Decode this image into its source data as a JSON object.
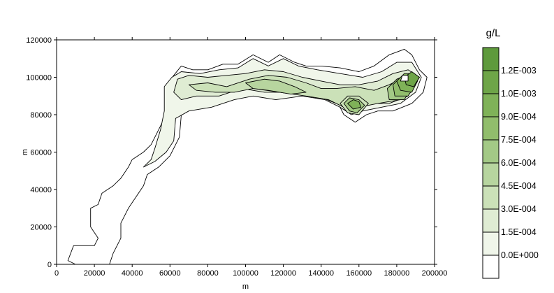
{
  "chart_data": {
    "type": "contour",
    "xlabel": "m",
    "ylabel": "m",
    "xlim": [
      0,
      200000
    ],
    "ylim": [
      0,
      120000
    ],
    "x_ticks": [
      "0",
      "20000",
      "40000",
      "60000",
      "80000",
      "100000",
      "120000",
      "140000",
      "160000",
      "180000",
      "200000"
    ],
    "x_tick_values": [
      0,
      20000,
      40000,
      60000,
      80000,
      100000,
      120000,
      140000,
      160000,
      180000,
      200000
    ],
    "y_ticks": [
      "0",
      "20000",
      "40000",
      "60000",
      "80000",
      "100000",
      "120000"
    ],
    "y_tick_values": [
      0,
      20000,
      40000,
      60000,
      80000,
      100000,
      120000
    ],
    "legend": {
      "title": "g/L",
      "placement": "right",
      "labels": [
        "1.2E-003",
        "1.0E-003",
        "9.0E-004",
        "7.5E-004",
        "6.0E-004",
        "4.5E-004",
        "3.0E-004",
        "1.5E-004",
        "0.0E+000"
      ],
      "colors": [
        "#5e9a3c",
        "#6ea548",
        "#7fb258",
        "#91bd6c",
        "#a3c986",
        "#b7d59f",
        "#cbe1b8",
        "#dfecd3",
        "#f0f6ea",
        "#ffffff"
      ]
    },
    "regions": [
      {
        "level": 0,
        "points": [
          [
            6000,
            2000
          ],
          [
            9000,
            10000
          ],
          [
            20000,
            10000
          ],
          [
            22000,
            14000
          ],
          [
            18000,
            20000
          ],
          [
            18000,
            30000
          ],
          [
            22000,
            32000
          ],
          [
            24000,
            38000
          ],
          [
            30000,
            42000
          ],
          [
            34000,
            46000
          ],
          [
            38000,
            52000
          ],
          [
            40000,
            56000
          ],
          [
            46000,
            60000
          ],
          [
            50000,
            64000
          ],
          [
            53000,
            70000
          ],
          [
            56000,
            76000
          ],
          [
            58000,
            82000
          ],
          [
            58000,
            95000
          ],
          [
            62000,
            101000
          ],
          [
            66000,
            106000
          ],
          [
            72000,
            104000
          ],
          [
            80000,
            104000
          ],
          [
            88000,
            107000
          ],
          [
            96000,
            107000
          ],
          [
            104000,
            112000
          ],
          [
            112000,
            108000
          ],
          [
            118000,
            112000
          ],
          [
            126000,
            108000
          ],
          [
            132000,
            106000
          ],
          [
            140000,
            106000
          ],
          [
            150000,
            105000
          ],
          [
            160000,
            103000
          ],
          [
            168000,
            106000
          ],
          [
            176000,
            112000
          ],
          [
            184000,
            115000
          ],
          [
            188000,
            112000
          ],
          [
            192000,
            104000
          ],
          [
            196000,
            100000
          ],
          [
            194000,
            92000
          ],
          [
            188000,
            86000
          ],
          [
            178000,
            82000
          ],
          [
            170000,
            82000
          ],
          [
            164000,
            80000
          ],
          [
            158000,
            76000
          ],
          [
            152000,
            80000
          ],
          [
            148000,
            88000
          ],
          [
            140000,
            90000
          ],
          [
            130000,
            92000
          ],
          [
            118000,
            90000
          ],
          [
            106000,
            92000
          ],
          [
            98000,
            92000
          ],
          [
            90000,
            88000
          ],
          [
            80000,
            86000
          ],
          [
            70000,
            84000
          ],
          [
            66000,
            80000
          ],
          [
            65000,
            68000
          ],
          [
            60000,
            58000
          ],
          [
            54000,
            52000
          ],
          [
            48000,
            48000
          ],
          [
            46000,
            42000
          ],
          [
            42000,
            36000
          ],
          [
            38000,
            30000
          ],
          [
            34000,
            22000
          ],
          [
            34000,
            14000
          ],
          [
            30000,
            6000
          ],
          [
            28000,
            0
          ],
          [
            10000,
            0
          ]
        ]
      },
      {
        "level": 1,
        "points": [
          [
            46000,
            52000
          ],
          [
            50000,
            56000
          ],
          [
            52000,
            62000
          ],
          [
            55000,
            72000
          ],
          [
            57000,
            82000
          ],
          [
            57000,
            95000
          ],
          [
            61000,
            100000
          ],
          [
            66000,
            103000
          ],
          [
            76000,
            102000
          ],
          [
            86000,
            104000
          ],
          [
            96000,
            105000
          ],
          [
            104000,
            110000
          ],
          [
            112000,
            106000
          ],
          [
            120000,
            110000
          ],
          [
            128000,
            106000
          ],
          [
            138000,
            104000
          ],
          [
            150000,
            102000
          ],
          [
            162000,
            100000
          ],
          [
            172000,
            103000
          ],
          [
            180000,
            108000
          ],
          [
            188000,
            108000
          ],
          [
            193000,
            100000
          ],
          [
            190000,
            92000
          ],
          [
            182000,
            86000
          ],
          [
            172000,
            84000
          ],
          [
            162000,
            82000
          ],
          [
            156000,
            80000
          ],
          [
            150000,
            84000
          ],
          [
            142000,
            88000
          ],
          [
            130000,
            90000
          ],
          [
            116000,
            88000
          ],
          [
            104000,
            90000
          ],
          [
            94000,
            88000
          ],
          [
            82000,
            84000
          ],
          [
            70000,
            82000
          ],
          [
            63000,
            78000
          ],
          [
            62000,
            66000
          ],
          [
            58000,
            60000
          ],
          [
            52000,
            55000
          ]
        ]
      },
      {
        "level": 2,
        "points": [
          [
            62000,
            92000
          ],
          [
            64000,
            99000
          ],
          [
            70000,
            101000
          ],
          [
            80000,
            100000
          ],
          [
            90000,
            101000
          ],
          [
            100000,
            102000
          ],
          [
            110000,
            104000
          ],
          [
            120000,
            103000
          ],
          [
            130000,
            100000
          ],
          [
            140000,
            98000
          ],
          [
            150000,
            96000
          ],
          [
            160000,
            96000
          ],
          [
            170000,
            98000
          ],
          [
            178000,
            102000
          ],
          [
            186000,
            104000
          ],
          [
            192000,
            100000
          ],
          [
            186000,
            90000
          ],
          [
            176000,
            86000
          ],
          [
            166000,
            86000
          ],
          [
            156000,
            82000
          ],
          [
            148000,
            86000
          ],
          [
            138000,
            90000
          ],
          [
            124000,
            92000
          ],
          [
            110000,
            92000
          ],
          [
            98000,
            94000
          ],
          [
            86000,
            90000
          ],
          [
            74000,
            90000
          ],
          [
            66000,
            88000
          ]
        ]
      },
      {
        "level": 3,
        "points": [
          [
            70000,
            96000
          ],
          [
            80000,
            97000
          ],
          [
            90000,
            95000
          ],
          [
            102000,
            99000
          ],
          [
            112000,
            101000
          ],
          [
            122000,
            100000
          ],
          [
            132000,
            97000
          ],
          [
            140000,
            94000
          ],
          [
            148000,
            94000
          ],
          [
            158000,
            95000
          ],
          [
            168000,
            93000
          ],
          [
            176000,
            96000
          ],
          [
            184000,
            100000
          ],
          [
            190000,
            98000
          ],
          [
            182000,
            88000
          ],
          [
            170000,
            86000
          ],
          [
            160000,
            84000
          ],
          [
            152000,
            84000
          ],
          [
            144000,
            88000
          ],
          [
            132000,
            90000
          ],
          [
            118000,
            92000
          ],
          [
            104000,
            94000
          ],
          [
            94000,
            92000
          ],
          [
            84000,
            92000
          ],
          [
            74000,
            93000
          ]
        ]
      },
      {
        "level": 4,
        "points": [
          [
            100000,
            97000
          ],
          [
            110000,
            99000
          ],
          [
            118000,
            98000
          ],
          [
            126000,
            95000
          ],
          [
            132000,
            92000
          ],
          [
            124000,
            91000
          ],
          [
            112000,
            93000
          ],
          [
            104000,
            94000
          ]
        ]
      },
      {
        "level": 5,
        "points": [
          [
            175000,
            94000
          ],
          [
            180000,
            99000
          ],
          [
            185000,
            101000
          ],
          [
            190000,
            98000
          ],
          [
            184000,
            88000
          ],
          [
            176000,
            88000
          ]
        ]
      },
      {
        "level": 6,
        "points": [
          [
            178000,
            96000
          ],
          [
            182000,
            100000
          ],
          [
            187000,
            100000
          ],
          [
            190000,
            96000
          ],
          [
            186000,
            90000
          ],
          [
            179000,
            90000
          ]
        ]
      },
      {
        "level": 7,
        "points": [
          [
            180000,
            98000
          ],
          [
            184000,
            102000
          ],
          [
            188000,
            102000
          ],
          [
            191000,
            98000
          ],
          [
            188000,
            92000
          ],
          [
            182000,
            93000
          ]
        ]
      },
      {
        "level": 8,
        "points": [
          [
            184000,
            100000
          ],
          [
            188000,
            103000
          ],
          [
            192000,
            100000
          ],
          [
            189000,
            95000
          ],
          [
            185000,
            96000
          ]
        ]
      },
      {
        "level": 3,
        "points": [
          [
            150000,
            86000
          ],
          [
            154000,
            90000
          ],
          [
            160000,
            90000
          ],
          [
            165000,
            86000
          ],
          [
            160000,
            80000
          ],
          [
            154000,
            81000
          ]
        ]
      },
      {
        "level": 5,
        "points": [
          [
            152000,
            86000
          ],
          [
            155000,
            89000
          ],
          [
            160000,
            88000
          ],
          [
            163000,
            85000
          ],
          [
            159000,
            81000
          ],
          [
            155000,
            82000
          ]
        ]
      },
      {
        "level": 7,
        "points": [
          [
            154000,
            86000
          ],
          [
            157000,
            88000
          ],
          [
            160000,
            87000
          ],
          [
            161000,
            84000
          ],
          [
            157000,
            83000
          ]
        ]
      },
      {
        "level": 0,
        "points": [
          [
            182000,
            98000
          ],
          [
            183000,
            101000
          ],
          [
            186000,
            101000
          ],
          [
            186000,
            98000
          ]
        ]
      }
    ]
  }
}
